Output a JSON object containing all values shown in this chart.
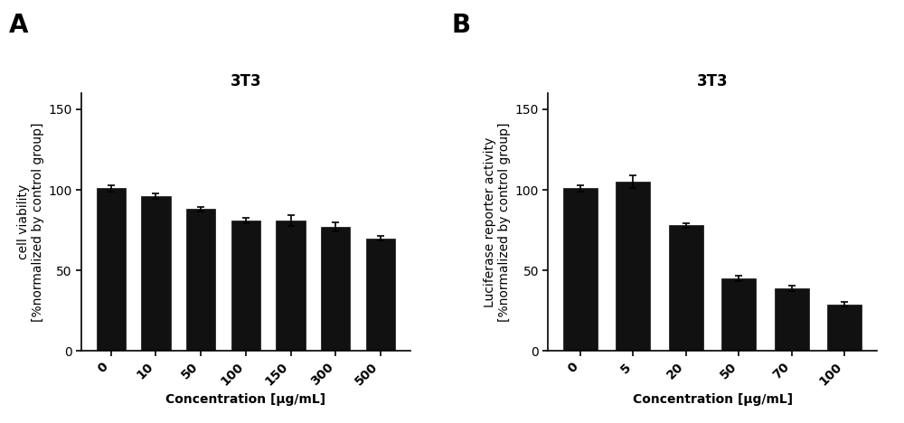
{
  "panel_A": {
    "title": "3T3",
    "label": "A",
    "categories": [
      "0",
      "10",
      "50",
      "100",
      "150",
      "300",
      "500"
    ],
    "values": [
      101,
      96,
      88,
      81,
      81,
      77,
      70
    ],
    "errors": [
      2.0,
      1.5,
      1.5,
      1.5,
      3.5,
      3.0,
      1.5
    ],
    "bar_color": "#111111",
    "ylabel": "cell viability\n[%normalized by control group]",
    "xlabel": "Concentration [μg/mL]",
    "ylim": [
      0,
      160
    ],
    "yticks": [
      0,
      50,
      100,
      150
    ]
  },
  "panel_B": {
    "title": "3T3",
    "label": "B",
    "categories": [
      "0",
      "5",
      "20",
      "50",
      "70",
      "100"
    ],
    "values": [
      101,
      105,
      78,
      45,
      39,
      29
    ],
    "errors": [
      2.0,
      4.0,
      1.5,
      1.5,
      1.5,
      1.5
    ],
    "bar_color": "#111111",
    "ylabel": "Luciferase reporter activity\n[%normalized by control group]",
    "xlabel": "Concentration [μg/mL]",
    "ylim": [
      0,
      160
    ],
    "yticks": [
      0,
      50,
      100,
      150
    ]
  },
  "background_color": "#ffffff",
  "label_fontsize": 20,
  "title_fontsize": 12,
  "axis_label_fontsize": 10,
  "tick_fontsize": 10,
  "bar_width": 0.65
}
